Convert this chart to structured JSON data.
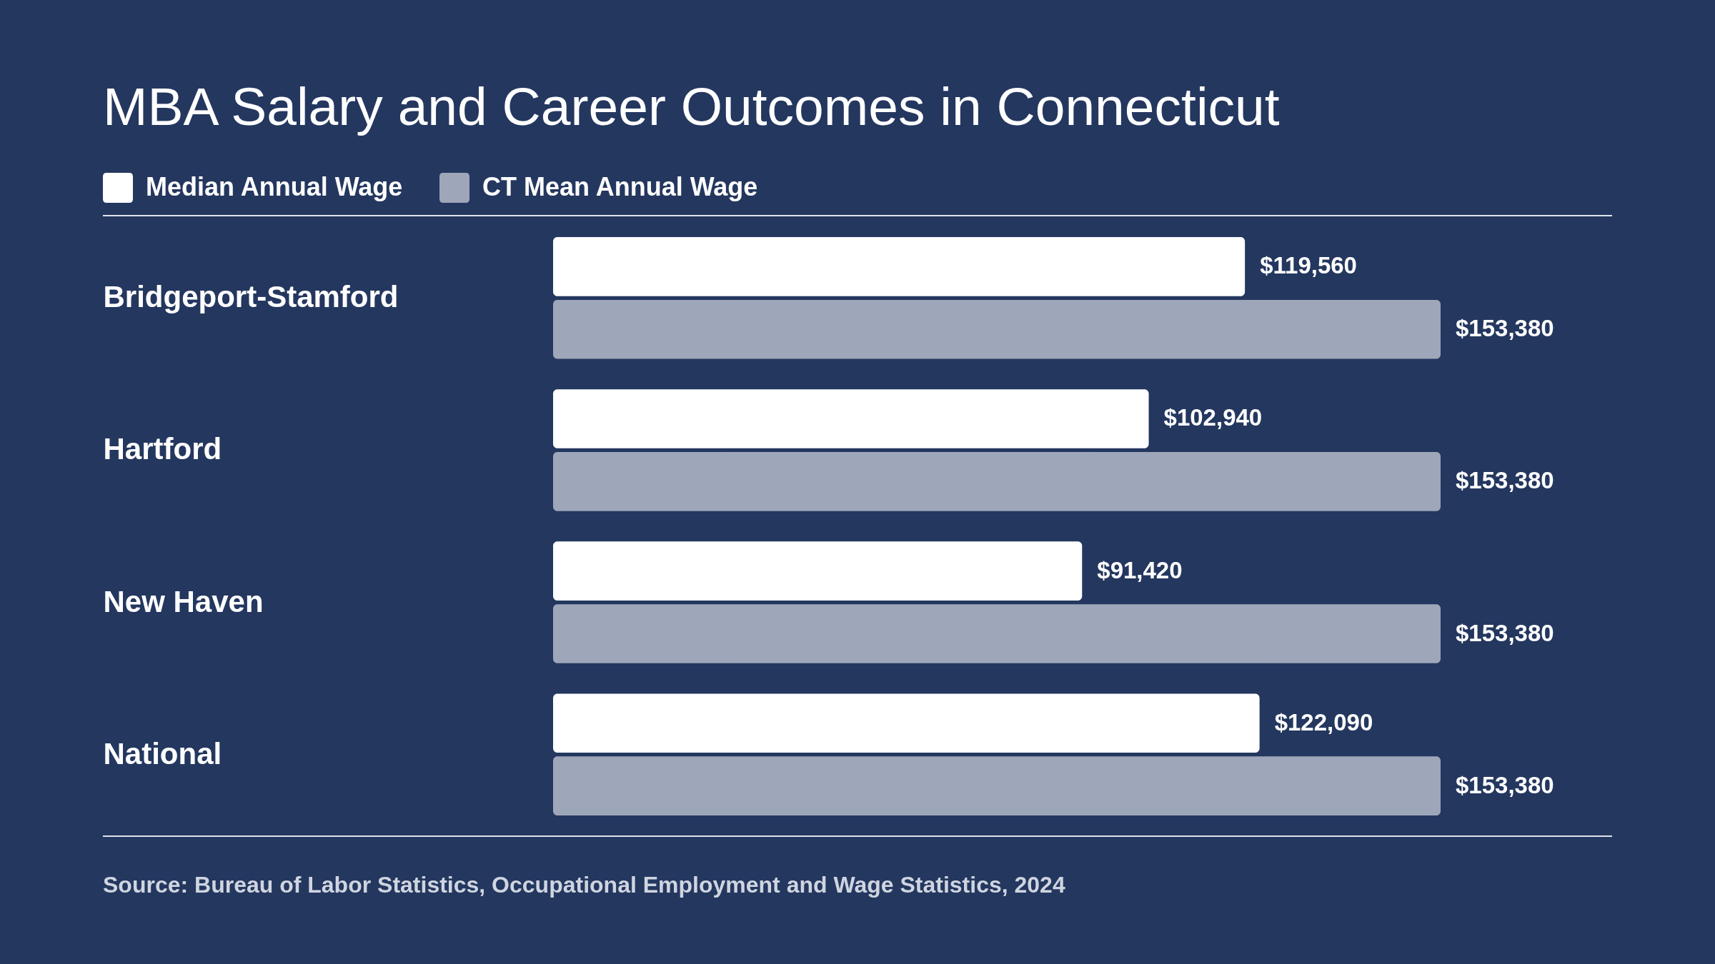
{
  "chart_data": {
    "type": "bar",
    "orientation": "horizontal",
    "title": "MBA Salary and Career Outcomes in Connecticut",
    "categories": [
      "Bridgeport-Stamford",
      "Hartford",
      "New Haven",
      "National"
    ],
    "series": [
      {
        "name": "Median Annual Wage",
        "color": "#ffffff",
        "values": [
          119560,
          102940,
          91420,
          122090
        ],
        "value_labels": [
          "$119,560",
          "$102,940",
          "$91,420",
          "$122,090"
        ]
      },
      {
        "name": "CT Mean Annual Wage",
        "color": "#9ea6b9",
        "values": [
          153380,
          153380,
          153380,
          153380
        ],
        "value_labels": [
          "$153,380",
          "$153,380",
          "$153,380",
          "$153,380"
        ]
      }
    ],
    "legend": "top left",
    "tick_labels": "y",
    "annotations": [
      "Source: Bureau of Labor Statistics, Occupational Employment and Wage Statistics, 2024"
    ]
  }
}
